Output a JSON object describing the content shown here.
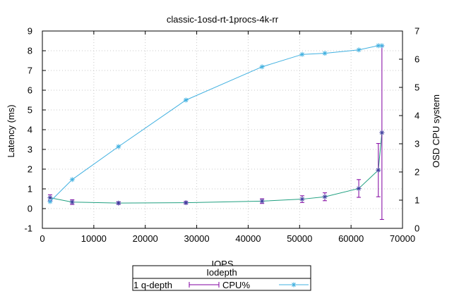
{
  "chart_data": {
    "type": "line",
    "title": "classic-1osd-rt-1procs-4k-rr",
    "xlabel": "IOPS",
    "ylabel": "Latency (ms)",
    "y2label": "OSD CPU system",
    "xlim": [
      0,
      70000
    ],
    "ylim": [
      -1,
      9
    ],
    "y2lim": [
      0,
      7
    ],
    "xticks": [
      0,
      10000,
      20000,
      30000,
      40000,
      50000,
      60000,
      70000
    ],
    "yticks": [
      -1,
      0,
      1,
      2,
      3,
      4,
      5,
      6,
      7,
      8,
      9
    ],
    "y2ticks": [
      0,
      1,
      2,
      3,
      4,
      5,
      6,
      7
    ],
    "grid": true,
    "legend": {
      "title": "Iodepth",
      "placement": "bottom-center",
      "entries": [
        "1 q-depth",
        "CPU%"
      ]
    },
    "series": [
      {
        "name": "1 q-depth",
        "axis": "left",
        "color": "#20a080",
        "errorbar_color": "#8000a0",
        "points": [
          {
            "x": 1500,
            "y": 0.55,
            "err": 0.15
          },
          {
            "x": 5800,
            "y": 0.33,
            "err": 0.12
          },
          {
            "x": 14800,
            "y": 0.28,
            "err": 0.06
          },
          {
            "x": 27900,
            "y": 0.3,
            "err": 0.06
          },
          {
            "x": 42700,
            "y": 0.38,
            "err": 0.12
          },
          {
            "x": 50500,
            "y": 0.48,
            "err": 0.17
          },
          {
            "x": 54900,
            "y": 0.6,
            "err": 0.2
          },
          {
            "x": 61500,
            "y": 1.02,
            "err": 0.45
          },
          {
            "x": 65300,
            "y": 1.95,
            "err": 1.35
          },
          {
            "x": 66000,
            "y": 3.85,
            "err": 4.4
          }
        ]
      },
      {
        "name": "CPU%",
        "axis": "right",
        "color": "#40b0e0",
        "points": [
          {
            "x": 1500,
            "y": 0.95
          },
          {
            "x": 5800,
            "y": 1.73
          },
          {
            "x": 14800,
            "y": 2.9
          },
          {
            "x": 27900,
            "y": 4.55
          },
          {
            "x": 42700,
            "y": 5.73
          },
          {
            "x": 50500,
            "y": 6.17
          },
          {
            "x": 54900,
            "y": 6.21
          },
          {
            "x": 61500,
            "y": 6.33
          },
          {
            "x": 65300,
            "y": 6.48
          },
          {
            "x": 66000,
            "y": 6.48
          }
        ]
      }
    ]
  }
}
